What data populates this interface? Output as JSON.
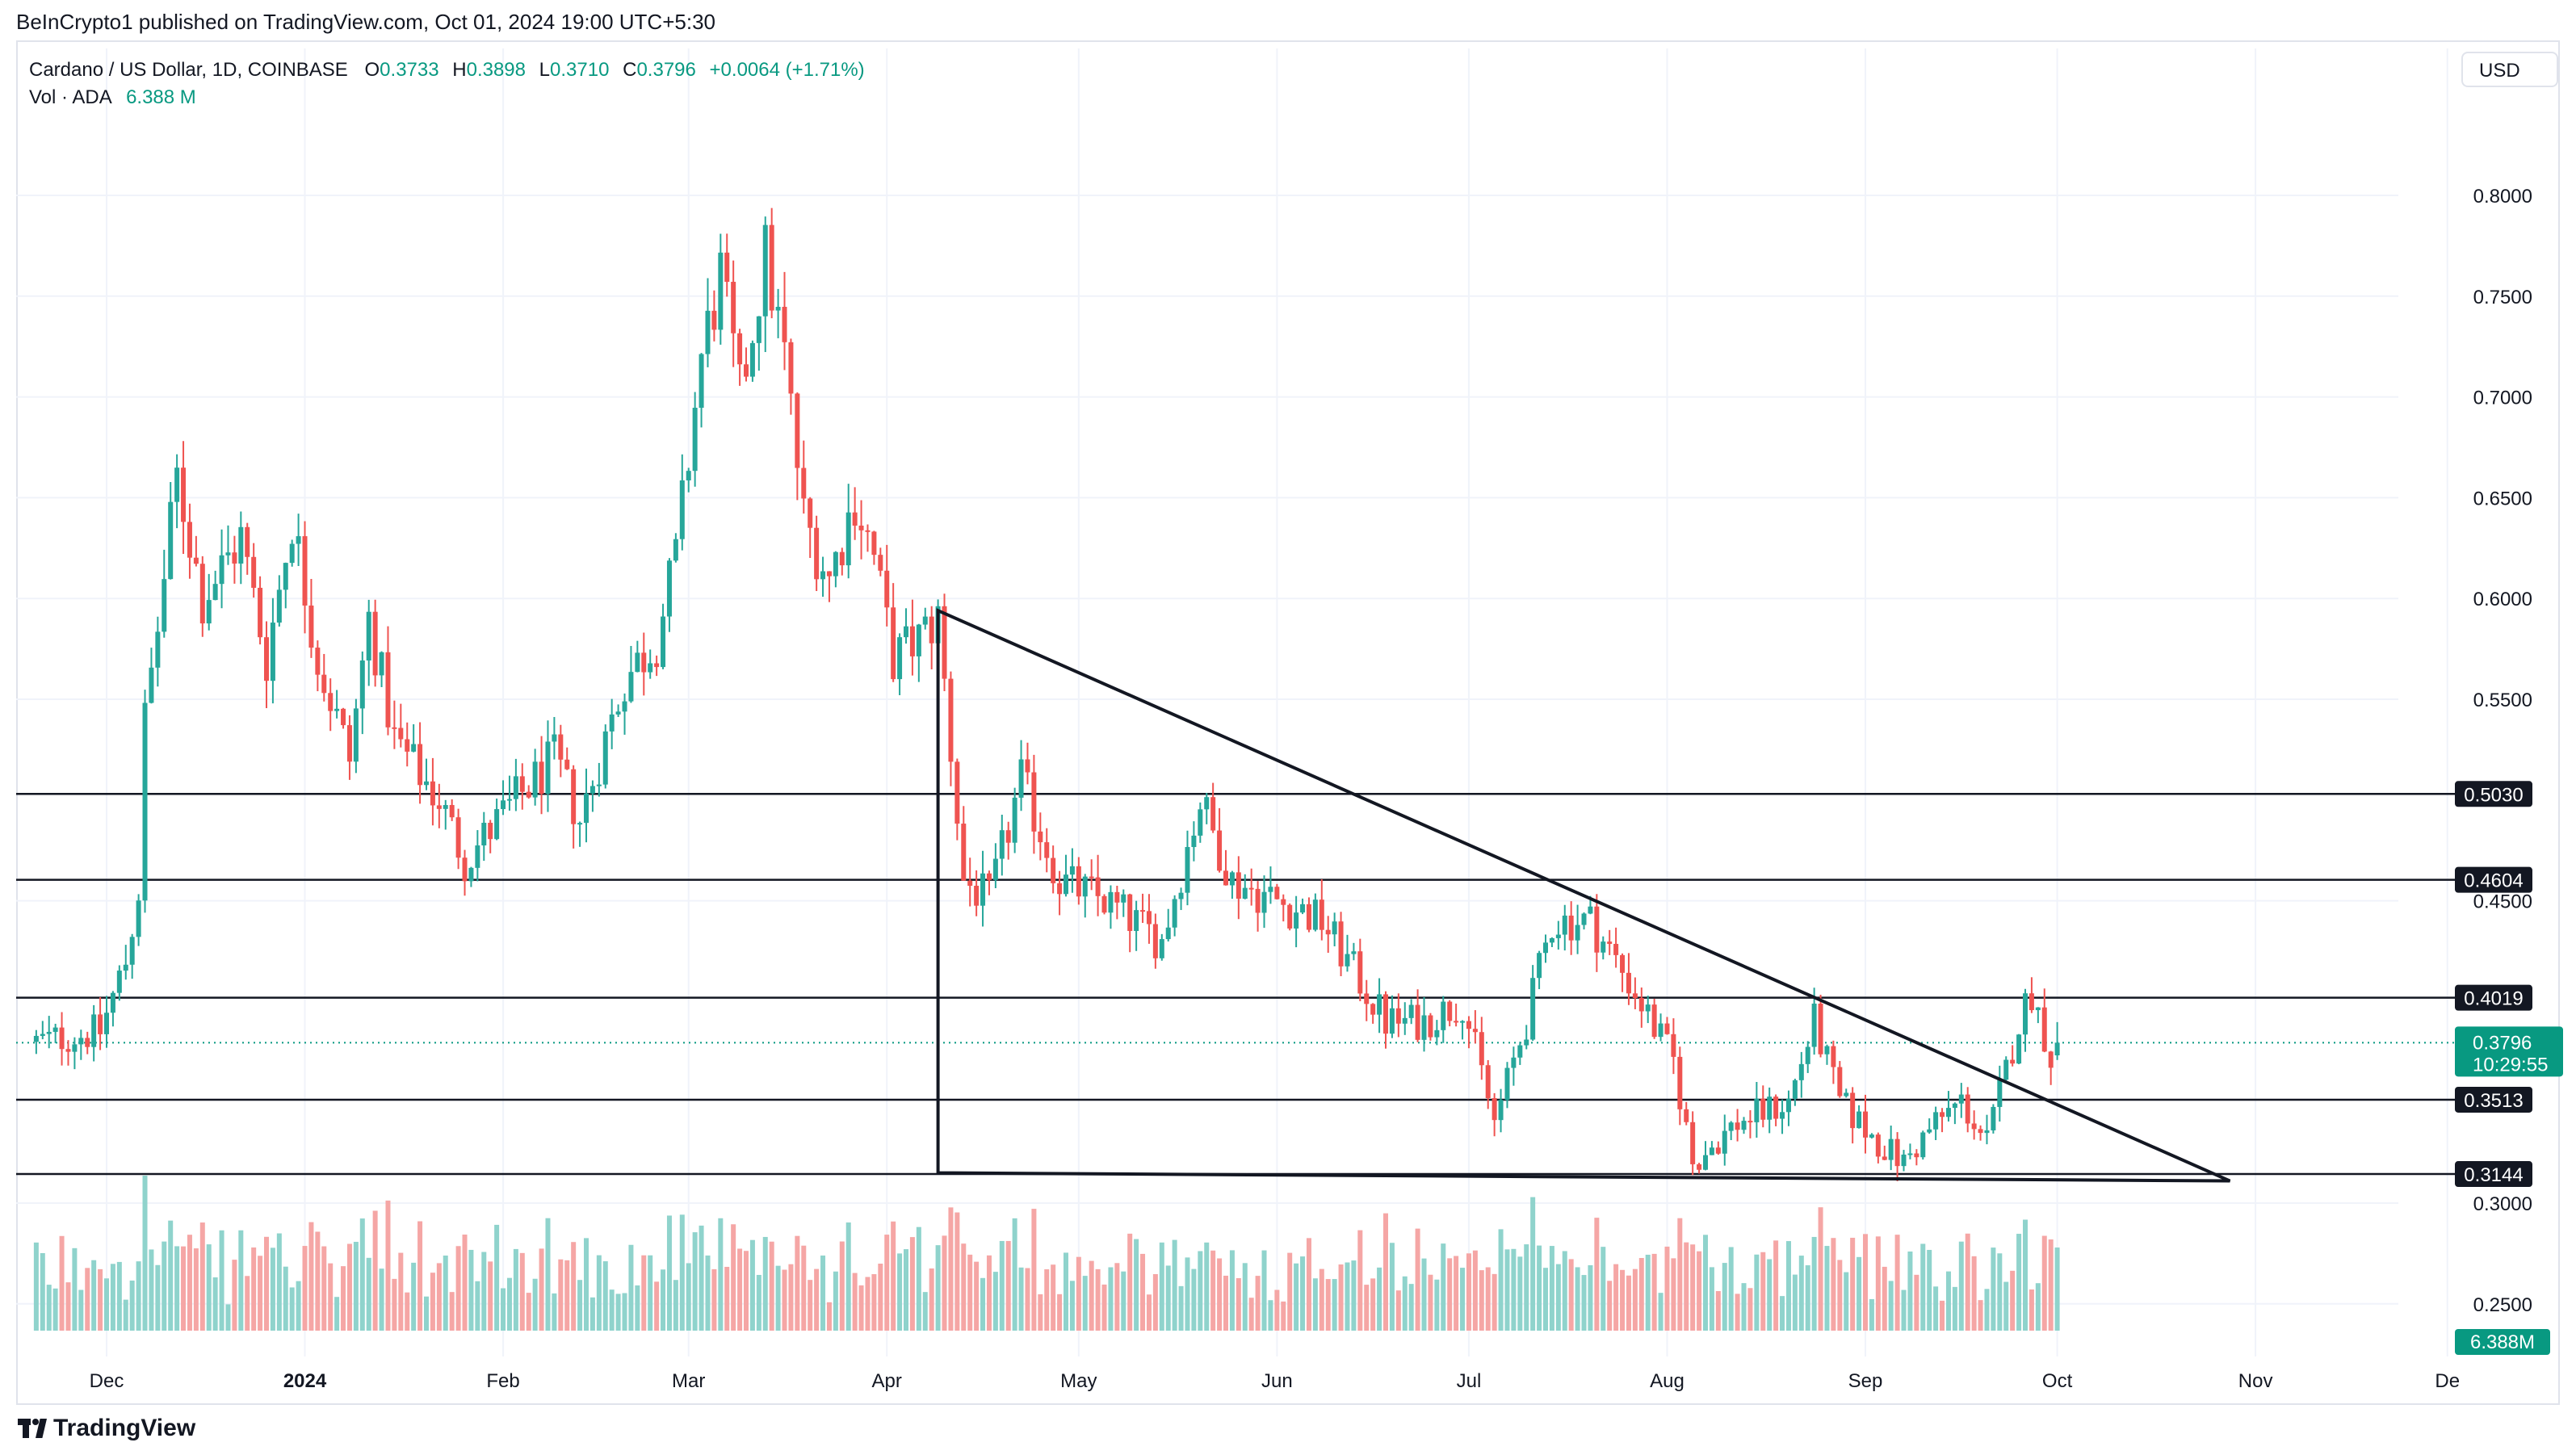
{
  "publisher": "BeInCrypto1 published on TradingView.com, Oct 01, 2024 19:00 UTC+5:30",
  "legend": {
    "symbol": "Cardano / US Dollar, 1D, COINBASE",
    "o_label": "O",
    "o_value": "0.3733",
    "h_label": "H",
    "h_value": "0.3898",
    "l_label": "L",
    "l_value": "0.3710",
    "c_label": "C",
    "c_value": "0.3796",
    "change": "+0.0064 (+1.71%)",
    "vol_label": "Vol · ADA",
    "vol_value": "6.388 M"
  },
  "currency_button": "USD",
  "brand": "TradingView",
  "colors": {
    "up": "#26a69a",
    "down": "#ef5350",
    "up_vol": "#8fd3cc",
    "down_vol": "#f5a6a5",
    "badge_green": "#089981"
  },
  "chart_data": {
    "type": "candlestick",
    "symbol": "ADA/USD",
    "timeframe": "1D",
    "y_ticks": [
      "0.8000",
      "0.7500",
      "0.7000",
      "0.6500",
      "0.6000",
      "0.5500",
      "0.4500",
      "0.3000",
      "0.2500"
    ],
    "x_ticks": [
      "Dec",
      "2024",
      "Feb",
      "Mar",
      "Apr",
      "May",
      "Jun",
      "Jul",
      "Aug",
      "Sep",
      "Oct",
      "Nov",
      "De"
    ],
    "horizontal_levels": [
      "0.5030",
      "0.4604",
      "0.4019",
      "0.3513",
      "0.3144"
    ],
    "current_price": "0.3796",
    "countdown": "10:29:55",
    "volume_badge": "6.388M",
    "anchors": [
      {
        "date": "2023-11-20",
        "close": 0.38
      },
      {
        "date": "2023-11-30",
        "close": 0.385
      },
      {
        "date": "2023-12-04",
        "close": 0.42
      },
      {
        "date": "2023-12-06",
        "close": 0.455
      },
      {
        "date": "2023-12-07",
        "close": 0.54
      },
      {
        "date": "2023-12-09",
        "close": 0.585
      },
      {
        "date": "2023-12-12",
        "close": 0.66
      },
      {
        "date": "2023-12-16",
        "close": 0.6
      },
      {
        "date": "2023-12-22",
        "close": 0.63
      },
      {
        "date": "2023-12-26",
        "close": 0.57
      },
      {
        "date": "2023-12-30",
        "close": 0.64
      },
      {
        "date": "2024-01-03",
        "close": 0.57
      },
      {
        "date": "2024-01-08",
        "close": 0.52
      },
      {
        "date": "2024-01-11",
        "close": 0.59
      },
      {
        "date": "2024-01-15",
        "close": 0.53
      },
      {
        "date": "2024-01-22",
        "close": 0.5
      },
      {
        "date": "2024-01-26",
        "close": 0.47
      },
      {
        "date": "2024-02-03",
        "close": 0.5
      },
      {
        "date": "2024-02-09",
        "close": 0.52
      },
      {
        "date": "2024-02-13",
        "close": 0.49
      },
      {
        "date": "2024-02-20",
        "close": 0.56
      },
      {
        "date": "2024-02-25",
        "close": 0.58
      },
      {
        "date": "2024-02-28",
        "close": 0.62
      },
      {
        "date": "2024-03-03",
        "close": 0.72
      },
      {
        "date": "2024-03-06",
        "close": 0.76
      },
      {
        "date": "2024-03-09",
        "close": 0.7
      },
      {
        "date": "2024-03-13",
        "close": 0.77
      },
      {
        "date": "2024-03-16",
        "close": 0.72
      },
      {
        "date": "2024-03-19",
        "close": 0.64
      },
      {
        "date": "2024-03-23",
        "close": 0.61
      },
      {
        "date": "2024-03-27",
        "close": 0.65
      },
      {
        "date": "2024-03-30",
        "close": 0.62
      },
      {
        "date": "2024-04-02",
        "close": 0.57
      },
      {
        "date": "2024-04-06",
        "close": 0.58
      },
      {
        "date": "2024-04-09",
        "close": 0.59
      },
      {
        "date": "2024-04-13",
        "close": 0.46
      },
      {
        "date": "2024-04-17",
        "close": 0.45
      },
      {
        "date": "2024-04-22",
        "close": 0.51
      },
      {
        "date": "2024-04-28",
        "close": 0.46
      },
      {
        "date": "2024-05-05",
        "close": 0.45
      },
      {
        "date": "2024-05-14",
        "close": 0.43
      },
      {
        "date": "2024-05-20",
        "close": 0.5
      },
      {
        "date": "2024-05-25",
        "close": 0.46
      },
      {
        "date": "2024-06-01",
        "close": 0.45
      },
      {
        "date": "2024-06-08",
        "close": 0.44
      },
      {
        "date": "2024-06-14",
        "close": 0.41
      },
      {
        "date": "2024-06-18",
        "close": 0.39
      },
      {
        "date": "2024-06-24",
        "close": 0.39
      },
      {
        "date": "2024-06-30",
        "close": 0.4
      },
      {
        "date": "2024-07-05",
        "close": 0.34
      },
      {
        "date": "2024-07-10",
        "close": 0.39
      },
      {
        "date": "2024-07-14",
        "close": 0.44
      },
      {
        "date": "2024-07-20",
        "close": 0.44
      },
      {
        "date": "2024-07-26",
        "close": 0.41
      },
      {
        "date": "2024-08-02",
        "close": 0.37
      },
      {
        "date": "2024-08-05",
        "close": 0.32
      },
      {
        "date": "2024-08-12",
        "close": 0.34
      },
      {
        "date": "2024-08-20",
        "close": 0.35
      },
      {
        "date": "2024-08-24",
        "close": 0.39
      },
      {
        "date": "2024-08-28",
        "close": 0.35
      },
      {
        "date": "2024-09-03",
        "close": 0.33
      },
      {
        "date": "2024-09-07",
        "close": 0.32
      },
      {
        "date": "2024-09-12",
        "close": 0.34
      },
      {
        "date": "2024-09-16",
        "close": 0.35
      },
      {
        "date": "2024-09-20",
        "close": 0.33
      },
      {
        "date": "2024-09-25",
        "close": 0.39
      },
      {
        "date": "2024-09-27",
        "close": 0.405
      },
      {
        "date": "2024-09-30",
        "close": 0.373
      },
      {
        "date": "2024-10-01",
        "close": 0.3796
      }
    ],
    "drawn_triangle": {
      "points": [
        {
          "date": "2024-04-09",
          "price": 0.594
        },
        {
          "date": "2024-10-28",
          "price": 0.311
        },
        {
          "date": "2024-04-09",
          "price": 0.315
        }
      ]
    }
  }
}
